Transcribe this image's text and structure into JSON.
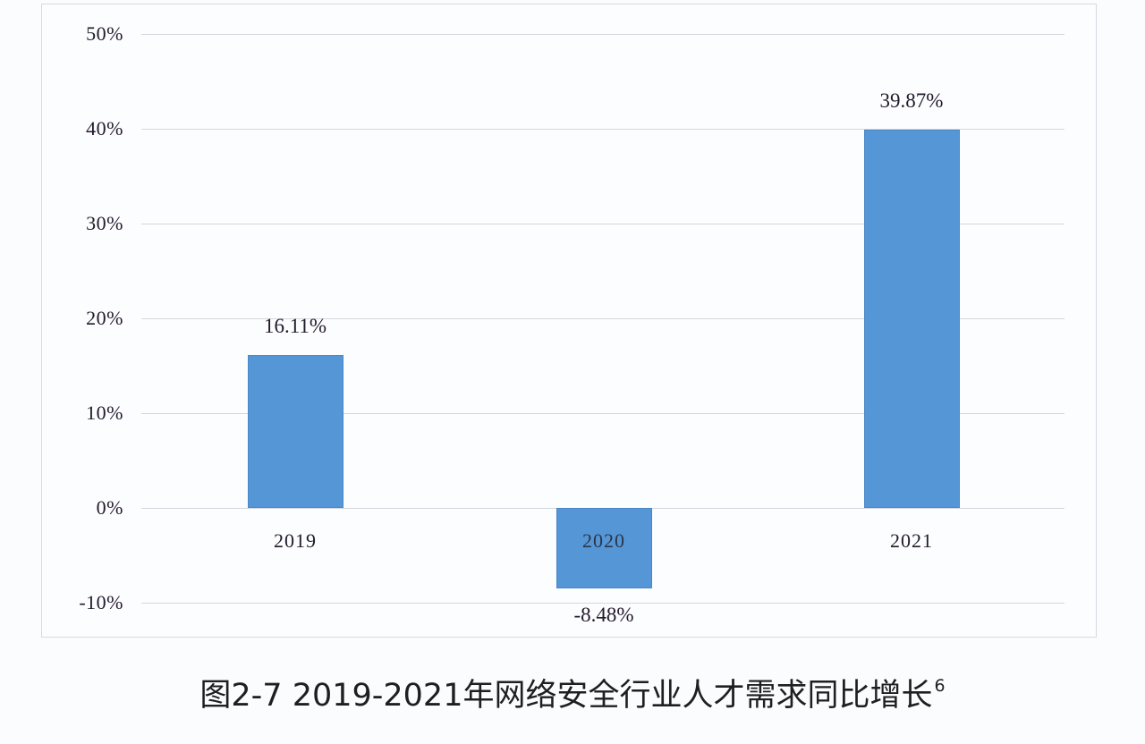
{
  "chart_data": {
    "type": "bar",
    "title": "图2-7 2019-2021年网络安全行业人才需求同比增长",
    "title_superscript": "6",
    "xlabel": "",
    "ylabel": "",
    "categories": [
      "2019",
      "2020",
      "2021"
    ],
    "values": [
      16.11,
      -8.48,
      39.87
    ],
    "value_labels": [
      "16.11%",
      "-8.48%",
      "39.87%"
    ],
    "ylim": [
      -10,
      50
    ],
    "yticks": [
      50,
      40,
      30,
      20,
      10,
      0,
      -10
    ],
    "ytick_labels": [
      "50%",
      "40%",
      "30%",
      "20%",
      "10%",
      "0%",
      "-10%"
    ],
    "grid": true,
    "legend": null,
    "bar_color": "#5596d6"
  },
  "colors": {
    "bar": "#5596d6",
    "gridline": "#d3d8de",
    "text": "#231a2b",
    "frame_border": "#d6dbe2"
  }
}
